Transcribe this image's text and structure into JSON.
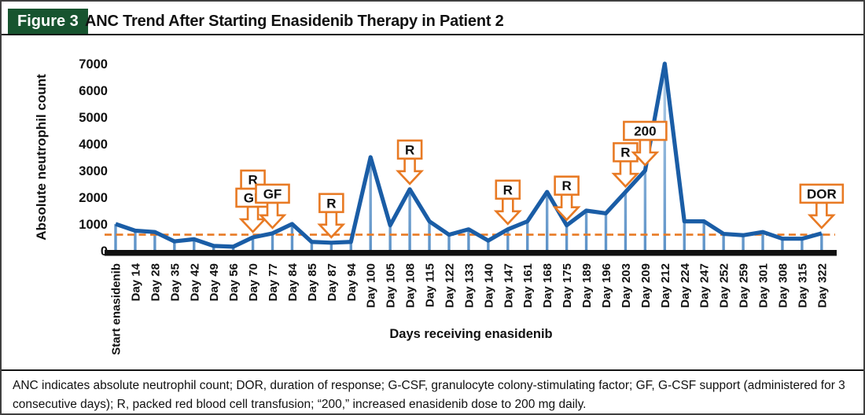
{
  "figure": {
    "tag": "Figure 3",
    "title": "ANC Trend After Starting Enasidenib Therapy in Patient 2"
  },
  "footnote": "ANC indicates absolute neutrophil count; DOR, duration of response; G-CSF, granulocyte colony-stimulating factor; GF, G-CSF support (administered for 3 consecutive days); R, packed red blood cell transfusion; “200,” increased enasidenib dose to 200 mg daily.",
  "chart_data": {
    "type": "line",
    "xlabel": "Days receiving enasidenib",
    "ylabel": "Absolute neutrophil count",
    "ylim": [
      0,
      7000
    ],
    "ytick_interval": 1000,
    "grid": false,
    "legend": "none",
    "reference_line": {
      "value": 600,
      "style": "dashed"
    },
    "categories": [
      "Start enasidenib",
      "Day 14",
      "Day 28",
      "Day 35",
      "Day 42",
      "Day 49",
      "Day 56",
      "Day 70",
      "Day 77",
      "Day 84",
      "Day 85",
      "Day 87",
      "Day 94",
      "Day 100",
      "Day 105",
      "Day 108",
      "Day 115",
      "Day 122",
      "Day 133",
      "Day 140",
      "Day 147",
      "Day 161",
      "Day 168",
      "Day 175",
      "Day 189",
      "Day 196",
      "Day 203",
      "Day 209",
      "Day 212",
      "Day 224",
      "Day 247",
      "Day 252",
      "Day 259",
      "Day 301",
      "Day 308",
      "Day 315",
      "Day 322"
    ],
    "values": [
      1000,
      750,
      700,
      350,
      430,
      180,
      150,
      500,
      650,
      1000,
      330,
      300,
      330,
      3500,
      950,
      2300,
      1100,
      600,
      800,
      380,
      800,
      1100,
      2200,
      950,
      1500,
      1400,
      2200,
      3000,
      7000,
      1100,
      1100,
      630,
      580,
      700,
      450,
      450,
      650
    ],
    "annotations": [
      {
        "category": "Day 70",
        "labels": [
          "R",
          "GF"
        ]
      },
      {
        "category": "Day 77",
        "labels": [
          "GF"
        ]
      },
      {
        "category": "Day 87",
        "labels": [
          "R"
        ]
      },
      {
        "category": "Day 108",
        "labels": [
          "R"
        ]
      },
      {
        "category": "Day 147",
        "labels": [
          "R"
        ]
      },
      {
        "category": "Day 175",
        "labels": [
          "R"
        ]
      },
      {
        "category": "Day 203",
        "labels": [
          "R"
        ]
      },
      {
        "category": "Day 209",
        "labels": [
          "200"
        ]
      },
      {
        "category": "Day 322",
        "labels": [
          "DOR"
        ]
      }
    ],
    "colors": {
      "line": "#1a5da6",
      "drop_line_top": "#b7d2ea",
      "drop_line_bottom": "#5e93c8",
      "axis": "#111111",
      "annotation": "#e87a24",
      "reference": "#e87a24",
      "header_green": "#17542f"
    }
  }
}
